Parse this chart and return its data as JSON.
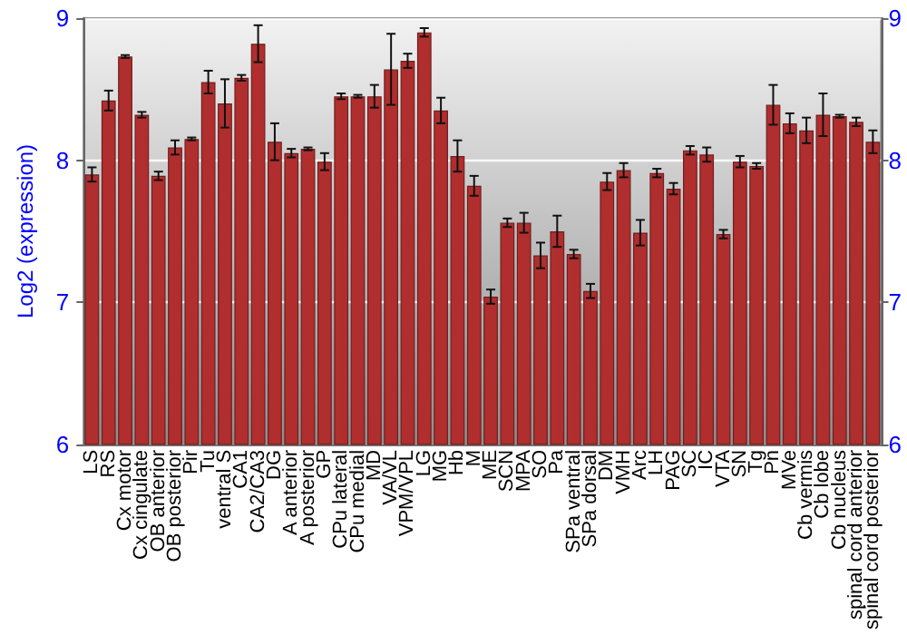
{
  "chart_data": {
    "type": "bar",
    "ylabel": "Log2 (expression)",
    "categories": [
      "LS",
      "RS",
      "Cx motor",
      "Cx cingulate",
      "OB anterior",
      "OB posterior",
      "Pir",
      "Tu",
      "ventral S",
      "CA1",
      "CA2/CA3",
      "DG",
      "A anterior",
      "A posterior",
      "GP",
      "CPu lateral",
      "CPu medial",
      "MD",
      "VA/VL",
      "VPM/VPL",
      "LG",
      "MG",
      "Hb",
      "M",
      "ME",
      "SCN",
      "MPA",
      "SO",
      "Pa",
      "SPa ventral",
      "SPa dorsal",
      "DM",
      "VMH",
      "Arc",
      "LH",
      "PAG",
      "SC",
      "IC",
      "VTA",
      "SN",
      "Tg",
      "Pn",
      "MVe",
      "Cb vermis",
      "Cb lobe",
      "Cb nucleus",
      "spinal cord anterior",
      "spinal cord posterior"
    ],
    "values": [
      7.9,
      8.42,
      8.73,
      8.32,
      7.89,
      8.09,
      8.15,
      8.55,
      8.4,
      8.58,
      8.82,
      8.13,
      8.05,
      8.08,
      7.99,
      8.45,
      8.45,
      8.45,
      8.64,
      8.7,
      8.9,
      8.35,
      8.03,
      7.82,
      7.04,
      7.56,
      7.56,
      7.33,
      7.5,
      7.34,
      7.08,
      7.85,
      7.93,
      7.49,
      7.91,
      7.8,
      8.07,
      8.04,
      7.48,
      7.99,
      7.96,
      8.39,
      8.26,
      8.21,
      8.32,
      8.31,
      8.27,
      8.13
    ],
    "errors": [
      0.05,
      0.07,
      0.01,
      0.02,
      0.03,
      0.05,
      0.01,
      0.08,
      0.17,
      0.02,
      0.13,
      0.13,
      0.03,
      0.01,
      0.06,
      0.02,
      0.01,
      0.08,
      0.25,
      0.05,
      0.03,
      0.09,
      0.11,
      0.07,
      0.05,
      0.03,
      0.07,
      0.09,
      0.11,
      0.03,
      0.05,
      0.06,
      0.05,
      0.09,
      0.03,
      0.04,
      0.03,
      0.05,
      0.03,
      0.04,
      0.02,
      0.14,
      0.07,
      0.09,
      0.15,
      0.01,
      0.03,
      0.08
    ],
    "color": "#b02e2e",
    "ylim": [
      6,
      9
    ],
    "yticks": [
      6,
      7,
      8,
      9
    ],
    "y2lim": [
      6,
      9
    ],
    "y2ticks": [
      6,
      7,
      8,
      9
    ],
    "grid": "y"
  }
}
